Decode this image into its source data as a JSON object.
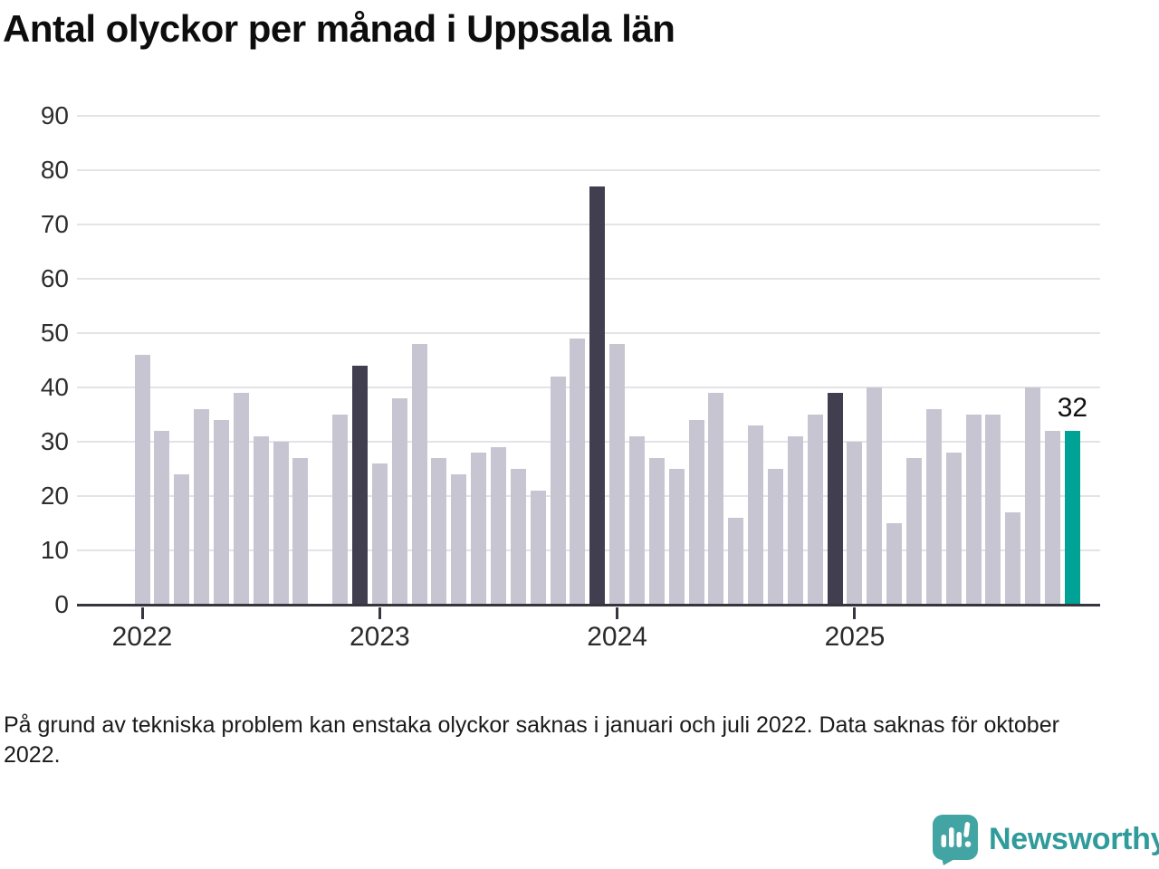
{
  "title": "Antal olyckor per månad i Uppsala län",
  "footnote": "På grund av tekniska problem kan enstaka olyckor saknas i januari och juli 2022. Data saknas för oktober 2022.",
  "brand": {
    "name": "Newsworthy",
    "icon": "newsworthy-speech-bubble-chart-icon",
    "color": "#2f9b9a"
  },
  "chart_data": {
    "type": "bar",
    "title": "Antal olyckor per månad i Uppsala län",
    "ylim": [
      0,
      90
    ],
    "y_ticks": [
      0,
      10,
      20,
      30,
      40,
      50,
      60,
      70,
      80,
      90
    ],
    "grid": "horizontal",
    "x_ticks": [
      {
        "label": "2022",
        "month_index": 0
      },
      {
        "label": "2023",
        "month_index": 12
      },
      {
        "label": "2024",
        "month_index": 24
      },
      {
        "label": "2025",
        "month_index": 36
      }
    ],
    "last_value_label": "32",
    "colors": {
      "default": "#c8c5d3",
      "december": "#413e4f",
      "highlight": "#00a296"
    },
    "series": [
      {
        "month": "2022-01",
        "value": 46,
        "color": "default"
      },
      {
        "month": "2022-02",
        "value": 32,
        "color": "default"
      },
      {
        "month": "2022-03",
        "value": 24,
        "color": "default"
      },
      {
        "month": "2022-04",
        "value": 36,
        "color": "default"
      },
      {
        "month": "2022-05",
        "value": 34,
        "color": "default"
      },
      {
        "month": "2022-06",
        "value": 39,
        "color": "default"
      },
      {
        "month": "2022-07",
        "value": 31,
        "color": "default"
      },
      {
        "month": "2022-08",
        "value": 30,
        "color": "default"
      },
      {
        "month": "2022-09",
        "value": 27,
        "color": "default"
      },
      {
        "month": "2022-10",
        "value": null,
        "color": "default"
      },
      {
        "month": "2022-11",
        "value": 35,
        "color": "default"
      },
      {
        "month": "2022-12",
        "value": 44,
        "color": "december"
      },
      {
        "month": "2023-01",
        "value": 26,
        "color": "default"
      },
      {
        "month": "2023-02",
        "value": 38,
        "color": "default"
      },
      {
        "month": "2023-03",
        "value": 48,
        "color": "default"
      },
      {
        "month": "2023-04",
        "value": 27,
        "color": "default"
      },
      {
        "month": "2023-05",
        "value": 24,
        "color": "default"
      },
      {
        "month": "2023-06",
        "value": 28,
        "color": "default"
      },
      {
        "month": "2023-07",
        "value": 29,
        "color": "default"
      },
      {
        "month": "2023-08",
        "value": 25,
        "color": "default"
      },
      {
        "month": "2023-09",
        "value": 21,
        "color": "default"
      },
      {
        "month": "2023-10",
        "value": 42,
        "color": "default"
      },
      {
        "month": "2023-11",
        "value": 49,
        "color": "default"
      },
      {
        "month": "2023-12",
        "value": 77,
        "color": "december"
      },
      {
        "month": "2024-01",
        "value": 48,
        "color": "default"
      },
      {
        "month": "2024-02",
        "value": 31,
        "color": "default"
      },
      {
        "month": "2024-03",
        "value": 27,
        "color": "default"
      },
      {
        "month": "2024-04",
        "value": 25,
        "color": "default"
      },
      {
        "month": "2024-05",
        "value": 34,
        "color": "default"
      },
      {
        "month": "2024-06",
        "value": 39,
        "color": "default"
      },
      {
        "month": "2024-07",
        "value": 16,
        "color": "default"
      },
      {
        "month": "2024-08",
        "value": 33,
        "color": "default"
      },
      {
        "month": "2024-09",
        "value": 25,
        "color": "default"
      },
      {
        "month": "2024-10",
        "value": 31,
        "color": "default"
      },
      {
        "month": "2024-11",
        "value": 35,
        "color": "default"
      },
      {
        "month": "2024-12",
        "value": 39,
        "color": "december"
      },
      {
        "month": "2025-01",
        "value": 30,
        "color": "default"
      },
      {
        "month": "2025-02",
        "value": 40,
        "color": "default"
      },
      {
        "month": "2025-03",
        "value": 15,
        "color": "default"
      },
      {
        "month": "2025-04",
        "value": 27,
        "color": "default"
      },
      {
        "month": "2025-05",
        "value": 36,
        "color": "default"
      },
      {
        "month": "2025-06",
        "value": 28,
        "color": "default"
      },
      {
        "month": "2025-07",
        "value": 35,
        "color": "default"
      },
      {
        "month": "2025-08",
        "value": 35,
        "color": "default"
      },
      {
        "month": "2025-09",
        "value": 17,
        "color": "default"
      },
      {
        "month": "2025-10",
        "value": 40,
        "color": "default"
      },
      {
        "month": "2025-11",
        "value": 32,
        "color": "default"
      },
      {
        "month": "2025-12",
        "value": 32,
        "color": "highlight"
      }
    ]
  }
}
